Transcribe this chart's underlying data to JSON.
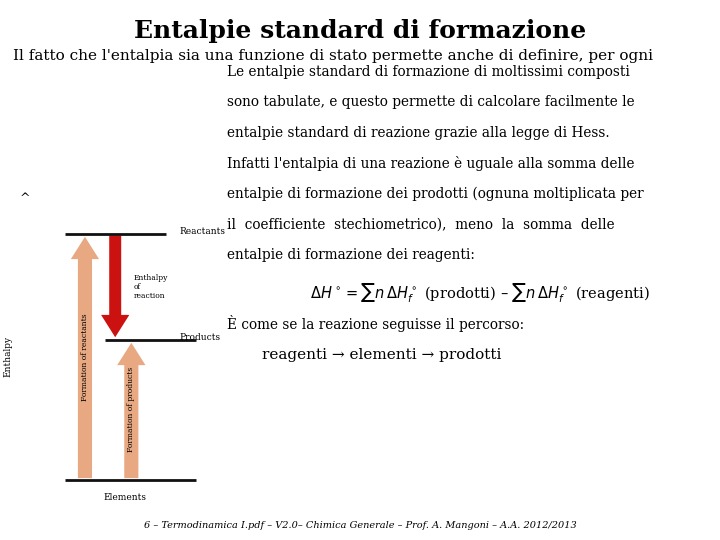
{
  "title": "Entalpie standard di formazione",
  "subtitle": "Il fatto che l'entalpia sia una funzione di stato permette anche di definire, per ogni",
  "bg_color": "#ffffff",
  "title_fontsize": 18,
  "subtitle_fontsize": 11,
  "body_text_lines": [
    "Le entalpie standard di formazione di moltissimi composti",
    "sono tabulate, e questo permette di calcolare facilmente le",
    "entalpie standard di reazione grazie alla legge di Hess.",
    "Infatti l'entalpia di una reazione è uguale alla somma delle",
    "entalpie di formazione dei prodotti (ognuna moltiplicata per",
    "il  coefficiente  stechiometrico),  meno  la  somma  delle",
    "entalpie di formazione dei reagenti:"
  ],
  "percorso_text": "È come se la reazione seguisse il percorso:",
  "percorso_formula": "reagenti → elementi → prodotti",
  "footer": "6 – Termodinamica I.pdf – V2.0– Chimica Generale – Prof. A. Mangoni – A.A. 2012/2013",
  "text_color": "#000000",
  "arrow_up_color": "#e8a882",
  "arrow_down_color": "#cc1111",
  "line_color": "#111111"
}
